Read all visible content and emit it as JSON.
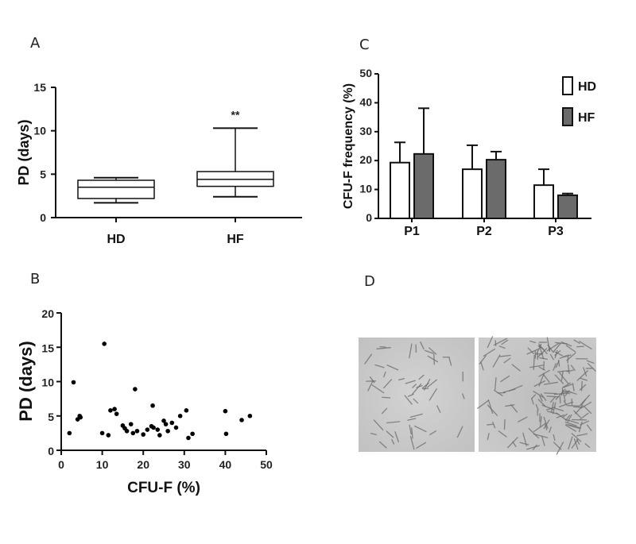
{
  "panels": {
    "A": "A",
    "B": "B",
    "C": "C",
    "D": "D"
  },
  "chart_data": [
    {
      "panel": "A",
      "type": "box",
      "title": "",
      "xlabel": "",
      "ylabel": "PD (days)",
      "ylim": [
        0,
        15
      ],
      "yticks": [
        0,
        5,
        10,
        15
      ],
      "categories": [
        "HD",
        "HF"
      ],
      "boxes": [
        {
          "label": "HD",
          "min": 1.7,
          "q1": 2.2,
          "median": 3.5,
          "q3": 4.3,
          "max": 4.6
        },
        {
          "label": "HF",
          "min": 2.4,
          "q1": 3.6,
          "median": 4.4,
          "q3": 5.3,
          "max": 10.3
        }
      ],
      "annotations": [
        {
          "category": "HF",
          "text": "**"
        }
      ]
    },
    {
      "panel": "C",
      "type": "bar",
      "title": "",
      "xlabel": "",
      "ylabel": "CFU-F frequency (%)",
      "ylim": [
        0,
        50
      ],
      "yticks": [
        0,
        10,
        20,
        30,
        40,
        50
      ],
      "categories": [
        "P1",
        "P2",
        "P3"
      ],
      "series": [
        {
          "name": "HD",
          "color": "#ffffff",
          "values": [
            19.3,
            17.0,
            11.5
          ],
          "errors": [
            7.0,
            8.3,
            5.5
          ]
        },
        {
          "name": "HF",
          "color": "#6b6b6b",
          "values": [
            22.3,
            20.3,
            8.0
          ],
          "errors": [
            15.8,
            2.8,
            0.6
          ]
        }
      ],
      "legend": "top-right"
    },
    {
      "panel": "B",
      "type": "scatter",
      "title": "",
      "xlabel": "CFU-F (%)",
      "ylabel": "PD (days)",
      "xlim": [
        0,
        50
      ],
      "ylim": [
        0,
        20
      ],
      "xticks": [
        0,
        10,
        20,
        30,
        40,
        50
      ],
      "yticks": [
        0,
        5,
        10,
        15,
        20
      ],
      "points": [
        [
          2,
          2.5
        ],
        [
          3,
          9.9
        ],
        [
          4,
          4.5
        ],
        [
          4.5,
          5
        ],
        [
          4.7,
          4.8
        ],
        [
          10,
          2.5
        ],
        [
          10.5,
          15.5
        ],
        [
          11.5,
          2.2
        ],
        [
          12,
          5.8
        ],
        [
          13,
          6
        ],
        [
          13.5,
          5.3
        ],
        [
          15,
          3.6
        ],
        [
          15.5,
          3.2
        ],
        [
          16,
          2.8
        ],
        [
          17,
          3.8
        ],
        [
          17.5,
          2.5
        ],
        [
          18,
          8.9
        ],
        [
          18.5,
          2.8
        ],
        [
          20,
          2.3
        ],
        [
          21,
          3
        ],
        [
          22,
          3.5
        ],
        [
          22.3,
          6.5
        ],
        [
          22.5,
          3.3
        ],
        [
          23.5,
          3
        ],
        [
          24,
          2.2
        ],
        [
          25,
          4.3
        ],
        [
          25.5,
          3.8
        ],
        [
          26,
          2.8
        ],
        [
          27,
          4
        ],
        [
          28,
          3.3
        ],
        [
          29,
          5
        ],
        [
          30.5,
          5.8
        ],
        [
          31,
          1.8
        ],
        [
          32,
          2.4
        ],
        [
          40,
          5.7
        ],
        [
          40.2,
          2.4
        ],
        [
          44,
          4.4
        ],
        [
          46,
          5
        ]
      ]
    }
  ],
  "image_panel": {
    "description_icons": [
      "cell-micrograph-left",
      "cell-micrograph-right"
    ]
  }
}
